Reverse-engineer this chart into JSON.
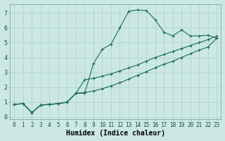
{
  "xlabel": "Humidex (Indice chaleur)",
  "bg_color": "#cce8e4",
  "line_color": "#1a6b5a",
  "xlim": [
    -0.5,
    23.5
  ],
  "ylim": [
    -0.15,
    7.6
  ],
  "xticks": [
    0,
    1,
    2,
    3,
    4,
    5,
    6,
    7,
    8,
    9,
    10,
    11,
    12,
    13,
    14,
    15,
    16,
    17,
    18,
    19,
    20,
    21,
    22,
    23
  ],
  "yticks": [
    0,
    1,
    2,
    3,
    4,
    5,
    6,
    7
  ],
  "line1_x": [
    0,
    1,
    2,
    3,
    4,
    5,
    6,
    7,
    8,
    9,
    10,
    11,
    12,
    13,
    14,
    15,
    16,
    17,
    18,
    19,
    20,
    21,
    22,
    23
  ],
  "line1_y": [
    0.85,
    0.9,
    0.3,
    0.8,
    0.85,
    0.9,
    1.0,
    1.6,
    1.6,
    3.6,
    4.55,
    4.9,
    6.0,
    7.1,
    7.2,
    7.15,
    6.55,
    5.7,
    5.45,
    5.85,
    5.45,
    5.45,
    5.5,
    5.3
  ],
  "line2_x": [
    0,
    1,
    2,
    3,
    4,
    5,
    6,
    7,
    8,
    9,
    10,
    11,
    12,
    13,
    14,
    15,
    16,
    17,
    18,
    19,
    20,
    21,
    22,
    23
  ],
  "line2_y": [
    0.85,
    0.9,
    0.3,
    0.8,
    0.85,
    0.9,
    1.0,
    1.6,
    2.5,
    2.6,
    2.75,
    2.9,
    3.1,
    3.3,
    3.5,
    3.75,
    4.0,
    4.2,
    4.4,
    4.6,
    4.8,
    5.0,
    5.2,
    5.45
  ],
  "line3_x": [
    0,
    1,
    2,
    3,
    4,
    5,
    6,
    7,
    8,
    9,
    10,
    11,
    12,
    13,
    14,
    15,
    16,
    17,
    18,
    19,
    20,
    21,
    22,
    23
  ],
  "line3_y": [
    0.85,
    0.9,
    0.3,
    0.8,
    0.85,
    0.9,
    1.0,
    1.6,
    1.65,
    1.75,
    1.9,
    2.1,
    2.3,
    2.55,
    2.8,
    3.05,
    3.3,
    3.55,
    3.75,
    4.0,
    4.25,
    4.5,
    4.7,
    5.3
  ],
  "marker": "+",
  "markersize": 3,
  "linewidth": 0.8,
  "grid_color": "#aacfca",
  "xlabel_fontsize": 7,
  "tick_fontsize": 5.5
}
